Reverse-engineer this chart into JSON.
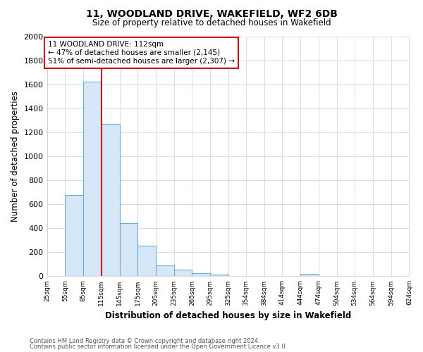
{
  "title": "11, WOODLAND DRIVE, WAKEFIELD, WF2 6DB",
  "subtitle": "Size of property relative to detached houses in Wakefield",
  "xlabel": "Distribution of detached houses by size in Wakefield",
  "ylabel": "Number of detached properties",
  "annotation_line1": "11 WOODLAND DRIVE: 112sqm",
  "annotation_line2": "← 47% of detached houses are smaller (2,145)",
  "annotation_line3": "51% of semi-detached houses are larger (2,307) →",
  "footnote1": "Contains HM Land Registry data © Crown copyright and database right 2024.",
  "footnote2": "Contains public sector information licensed under the Open Government Licence v3.0.",
  "bar_edges": [
    25,
    55,
    85,
    115,
    145,
    175,
    205,
    235,
    265,
    295,
    325,
    354,
    384,
    414,
    444,
    474,
    504,
    534,
    564,
    594,
    624
  ],
  "bar_heights": [
    0,
    680,
    1620,
    1270,
    440,
    255,
    90,
    55,
    25,
    15,
    0,
    0,
    0,
    0,
    20,
    0,
    0,
    0,
    0,
    0
  ],
  "bar_color": "#d6e8f7",
  "bar_edge_color": "#6aaed6",
  "property_line_x": 115,
  "property_line_color": "#cc0000",
  "annotation_box_edge_color": "#cc0000",
  "ylim": [
    0,
    2000
  ],
  "yticks": [
    0,
    200,
    400,
    600,
    800,
    1000,
    1200,
    1400,
    1600,
    1800,
    2000
  ],
  "bg_color": "#ffffff",
  "grid_color": "#d0d8e0",
  "bin_labels": [
    "25sqm",
    "55sqm",
    "85sqm",
    "115sqm",
    "145sqm",
    "175sqm",
    "205sqm",
    "235sqm",
    "265sqm",
    "295sqm",
    "325sqm",
    "354sqm",
    "384sqm",
    "414sqm",
    "444sqm",
    "474sqm",
    "504sqm",
    "534sqm",
    "564sqm",
    "594sqm",
    "624sqm"
  ]
}
